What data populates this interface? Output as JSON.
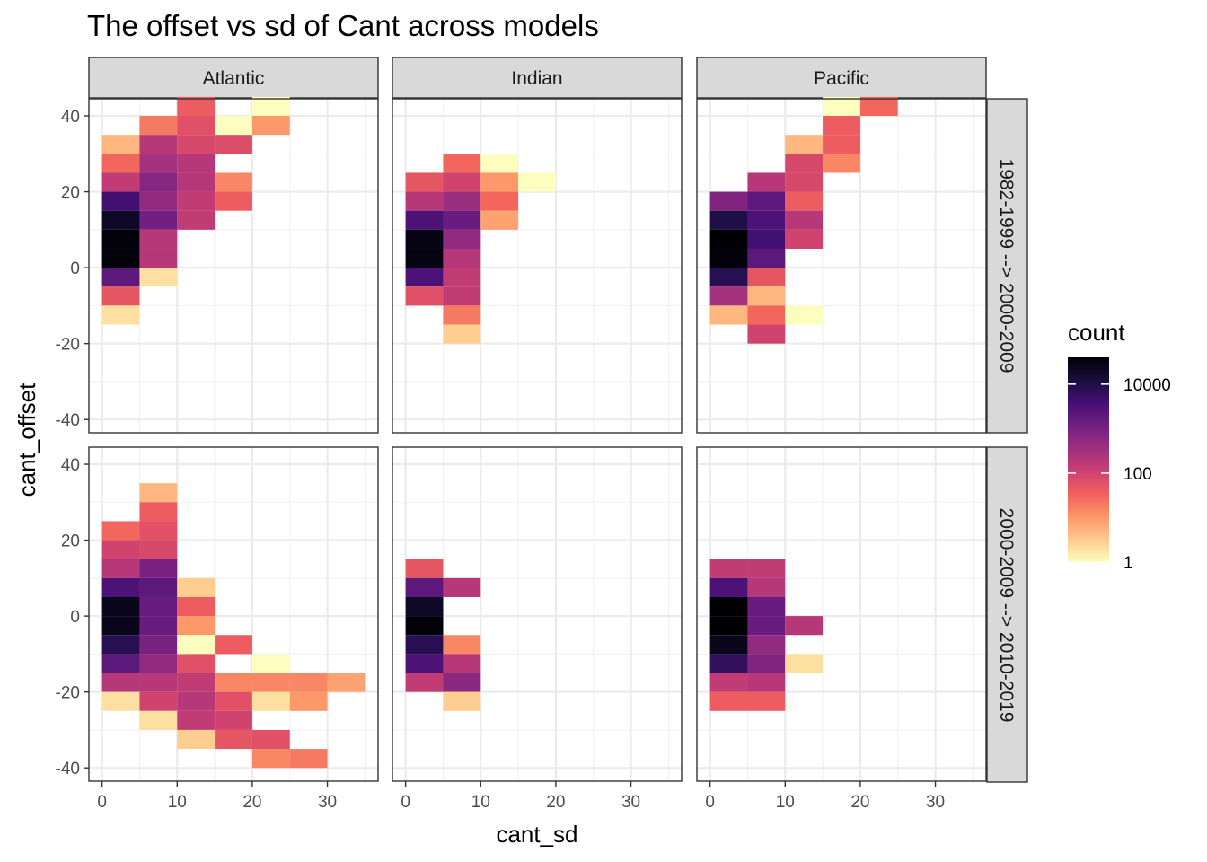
{
  "chart_data": {
    "type": "heatmap",
    "title": "The offset vs sd of Cant across models",
    "xlabel": "cant_sd",
    "ylabel": "cant_offset",
    "xlim": [
      -1.75,
      36.75
    ],
    "ylim": [
      -43.5,
      44.5
    ],
    "xticks": [
      0,
      10,
      20,
      30
    ],
    "yticks": [
      40,
      20,
      0,
      -20,
      -40
    ],
    "xtick_labels": [
      "0",
      "10",
      "20",
      "30"
    ],
    "ytick_labels": [
      "40",
      "20",
      "0",
      "-20",
      "-40"
    ],
    "bin_width_x": 5,
    "bin_height_y": 5,
    "columns": [
      "Atlantic",
      "Indian",
      "Pacific"
    ],
    "rows": [
      "1982-1999 --> 2000-2009",
      "2000-2009 --> 2010-2019"
    ],
    "legend": {
      "title": "count",
      "scale": "log10",
      "palette": "magma (reversed)",
      "breaks": [
        10000,
        100,
        1
      ],
      "break_labels": [
        "10000",
        "100",
        "1"
      ],
      "range": [
        1,
        40000
      ],
      "colors": [
        "#fcfdbf",
        "#feca8d",
        "#fd9668",
        "#f1605d",
        "#cd4071",
        "#9e2f7f",
        "#721f81",
        "#440f76",
        "#180f3d",
        "#000004"
      ]
    },
    "panels": [
      {
        "col": "Atlantic",
        "row": "1982-1999 --> 2000-2009",
        "cells": [
          {
            "x": 10,
            "y": 40,
            "count": 40
          },
          {
            "x": 20,
            "y": 40,
            "count": 1
          },
          {
            "x": 5,
            "y": 35,
            "count": 20
          },
          {
            "x": 10,
            "y": 35,
            "count": 60
          },
          {
            "x": 15,
            "y": 35,
            "count": 1
          },
          {
            "x": 20,
            "y": 35,
            "count": 10
          },
          {
            "x": 0,
            "y": 30,
            "count": 5
          },
          {
            "x": 5,
            "y": 30,
            "count": 200
          },
          {
            "x": 10,
            "y": 30,
            "count": 80
          },
          {
            "x": 15,
            "y": 30,
            "count": 70
          },
          {
            "x": 0,
            "y": 25,
            "count": 30
          },
          {
            "x": 5,
            "y": 25,
            "count": 300
          },
          {
            "x": 10,
            "y": 25,
            "count": 200
          },
          {
            "x": 0,
            "y": 20,
            "count": 150
          },
          {
            "x": 5,
            "y": 20,
            "count": 700
          },
          {
            "x": 10,
            "y": 20,
            "count": 200
          },
          {
            "x": 15,
            "y": 20,
            "count": 15
          },
          {
            "x": 0,
            "y": 15,
            "count": 4000
          },
          {
            "x": 5,
            "y": 15,
            "count": 500
          },
          {
            "x": 10,
            "y": 15,
            "count": 150
          },
          {
            "x": 15,
            "y": 15,
            "count": 40
          },
          {
            "x": 0,
            "y": 10,
            "count": 20000
          },
          {
            "x": 5,
            "y": 10,
            "count": 1200
          },
          {
            "x": 10,
            "y": 10,
            "count": 150
          },
          {
            "x": 0,
            "y": 5,
            "count": 35000
          },
          {
            "x": 5,
            "y": 5,
            "count": 200
          },
          {
            "x": 0,
            "y": 0,
            "count": 35000
          },
          {
            "x": 5,
            "y": 0,
            "count": 200
          },
          {
            "x": 0,
            "y": -5,
            "count": 2000
          },
          {
            "x": 5,
            "y": -5,
            "count": 2
          },
          {
            "x": 0,
            "y": -10,
            "count": 50
          },
          {
            "x": 0,
            "y": -15,
            "count": 2
          }
        ]
      },
      {
        "col": "Indian",
        "row": "1982-1999 --> 2000-2009",
        "cells": [
          {
            "x": 5,
            "y": 25,
            "count": 30
          },
          {
            "x": 10,
            "y": 25,
            "count": 1
          },
          {
            "x": 0,
            "y": 20,
            "count": 50
          },
          {
            "x": 5,
            "y": 20,
            "count": 100
          },
          {
            "x": 10,
            "y": 20,
            "count": 10
          },
          {
            "x": 15,
            "y": 20,
            "count": 1
          },
          {
            "x": 0,
            "y": 15,
            "count": 200
          },
          {
            "x": 5,
            "y": 15,
            "count": 400
          },
          {
            "x": 10,
            "y": 15,
            "count": 30
          },
          {
            "x": 0,
            "y": 10,
            "count": 3000
          },
          {
            "x": 5,
            "y": 10,
            "count": 1500
          },
          {
            "x": 10,
            "y": 10,
            "count": 8
          },
          {
            "x": 0,
            "y": 5,
            "count": 30000
          },
          {
            "x": 5,
            "y": 5,
            "count": 500
          },
          {
            "x": 0,
            "y": 0,
            "count": 30000
          },
          {
            "x": 5,
            "y": 0,
            "count": 200
          },
          {
            "x": 0,
            "y": -5,
            "count": 3000
          },
          {
            "x": 5,
            "y": -5,
            "count": 150
          },
          {
            "x": 0,
            "y": -10,
            "count": 60
          },
          {
            "x": 5,
            "y": -10,
            "count": 150
          },
          {
            "x": 5,
            "y": -15,
            "count": 20
          },
          {
            "x": 5,
            "y": -20,
            "count": 3
          }
        ]
      },
      {
        "col": "Pacific",
        "row": "1982-1999 --> 2000-2009",
        "cells": [
          {
            "x": 15,
            "y": 40,
            "count": 1
          },
          {
            "x": 20,
            "y": 40,
            "count": 30
          },
          {
            "x": 15,
            "y": 35,
            "count": 40
          },
          {
            "x": 10,
            "y": 30,
            "count": 5
          },
          {
            "x": 15,
            "y": 30,
            "count": 40
          },
          {
            "x": 10,
            "y": 25,
            "count": 80
          },
          {
            "x": 15,
            "y": 25,
            "count": 15
          },
          {
            "x": 5,
            "y": 20,
            "count": 200
          },
          {
            "x": 10,
            "y": 20,
            "count": 80
          },
          {
            "x": 0,
            "y": 15,
            "count": 800
          },
          {
            "x": 5,
            "y": 15,
            "count": 2000
          },
          {
            "x": 10,
            "y": 15,
            "count": 40
          },
          {
            "x": 0,
            "y": 10,
            "count": 10000
          },
          {
            "x": 5,
            "y": 10,
            "count": 3000
          },
          {
            "x": 10,
            "y": 10,
            "count": 200
          },
          {
            "x": 0,
            "y": 5,
            "count": 40000
          },
          {
            "x": 5,
            "y": 5,
            "count": 4000
          },
          {
            "x": 10,
            "y": 5,
            "count": 100
          },
          {
            "x": 0,
            "y": 0,
            "count": 35000
          },
          {
            "x": 5,
            "y": 0,
            "count": 2000
          },
          {
            "x": 0,
            "y": -5,
            "count": 8000
          },
          {
            "x": 5,
            "y": -5,
            "count": 50
          },
          {
            "x": 0,
            "y": -10,
            "count": 300
          },
          {
            "x": 5,
            "y": -10,
            "count": 5
          },
          {
            "x": 0,
            "y": -15,
            "count": 5
          },
          {
            "x": 5,
            "y": -15,
            "count": 30
          },
          {
            "x": 10,
            "y": -15,
            "count": 1
          },
          {
            "x": 5,
            "y": -20,
            "count": 100
          }
        ]
      },
      {
        "col": "Atlantic",
        "row": "2000-2009 --> 2010-2019",
        "cells": [
          {
            "x": 5,
            "y": 30,
            "count": 5
          },
          {
            "x": 5,
            "y": 25,
            "count": 40
          },
          {
            "x": 0,
            "y": 20,
            "count": 30
          },
          {
            "x": 5,
            "y": 20,
            "count": 60
          },
          {
            "x": 0,
            "y": 15,
            "count": 100
          },
          {
            "x": 5,
            "y": 15,
            "count": 80
          },
          {
            "x": 0,
            "y": 10,
            "count": 200
          },
          {
            "x": 5,
            "y": 10,
            "count": 1000
          },
          {
            "x": 0,
            "y": 5,
            "count": 3000
          },
          {
            "x": 5,
            "y": 5,
            "count": 2000
          },
          {
            "x": 10,
            "y": 5,
            "count": 3
          },
          {
            "x": 0,
            "y": 0,
            "count": 25000
          },
          {
            "x": 5,
            "y": 0,
            "count": 1500
          },
          {
            "x": 10,
            "y": 0,
            "count": 40
          },
          {
            "x": 0,
            "y": -5,
            "count": 25000
          },
          {
            "x": 5,
            "y": -5,
            "count": 1500
          },
          {
            "x": 10,
            "y": -5,
            "count": 10
          },
          {
            "x": 0,
            "y": -10,
            "count": 8000
          },
          {
            "x": 5,
            "y": -10,
            "count": 1000
          },
          {
            "x": 10,
            "y": -10,
            "count": 1
          },
          {
            "x": 15,
            "y": -10,
            "count": 40
          },
          {
            "x": 0,
            "y": -15,
            "count": 2000
          },
          {
            "x": 5,
            "y": -15,
            "count": 500
          },
          {
            "x": 10,
            "y": -15,
            "count": 60
          },
          {
            "x": 20,
            "y": -15,
            "count": 1
          },
          {
            "x": 0,
            "y": -20,
            "count": 200
          },
          {
            "x": 5,
            "y": -20,
            "count": 200
          },
          {
            "x": 10,
            "y": -20,
            "count": 150
          },
          {
            "x": 15,
            "y": -20,
            "count": 15
          },
          {
            "x": 20,
            "y": -20,
            "count": 15
          },
          {
            "x": 25,
            "y": -20,
            "count": 15
          },
          {
            "x": 30,
            "y": -20,
            "count": 8
          },
          {
            "x": 0,
            "y": -25,
            "count": 2
          },
          {
            "x": 5,
            "y": -25,
            "count": 100
          },
          {
            "x": 10,
            "y": -25,
            "count": 200
          },
          {
            "x": 15,
            "y": -25,
            "count": 60
          },
          {
            "x": 20,
            "y": -25,
            "count": 2
          },
          {
            "x": 25,
            "y": -25,
            "count": 10
          },
          {
            "x": 5,
            "y": -30,
            "count": 2
          },
          {
            "x": 10,
            "y": -30,
            "count": 150
          },
          {
            "x": 15,
            "y": -30,
            "count": 100
          },
          {
            "x": 10,
            "y": -35,
            "count": 3
          },
          {
            "x": 15,
            "y": -35,
            "count": 50
          },
          {
            "x": 20,
            "y": -35,
            "count": 60
          },
          {
            "x": 20,
            "y": -40,
            "count": 15
          },
          {
            "x": 25,
            "y": -40,
            "count": 20
          }
        ]
      },
      {
        "col": "Indian",
        "row": "2000-2009 --> 2010-2019",
        "cells": [
          {
            "x": 0,
            "y": 10,
            "count": 50
          },
          {
            "x": 0,
            "y": 5,
            "count": 2000
          },
          {
            "x": 5,
            "y": 5,
            "count": 200
          },
          {
            "x": 0,
            "y": 0,
            "count": 20000
          },
          {
            "x": 0,
            "y": -5,
            "count": 35000
          },
          {
            "x": 0,
            "y": -10,
            "count": 8000
          },
          {
            "x": 5,
            "y": -10,
            "count": 15
          },
          {
            "x": 0,
            "y": -15,
            "count": 3000
          },
          {
            "x": 5,
            "y": -15,
            "count": 200
          },
          {
            "x": 0,
            "y": -20,
            "count": 150
          },
          {
            "x": 5,
            "y": -20,
            "count": 600
          },
          {
            "x": 5,
            "y": -25,
            "count": 3
          }
        ]
      },
      {
        "col": "Pacific",
        "row": "2000-2009 --> 2010-2019",
        "cells": [
          {
            "x": 0,
            "y": 10,
            "count": 150
          },
          {
            "x": 5,
            "y": 10,
            "count": 150
          },
          {
            "x": 0,
            "y": 5,
            "count": 3000
          },
          {
            "x": 5,
            "y": 5,
            "count": 200
          },
          {
            "x": 0,
            "y": 0,
            "count": 40000
          },
          {
            "x": 5,
            "y": 0,
            "count": 1500
          },
          {
            "x": 0,
            "y": -5,
            "count": 40000
          },
          {
            "x": 5,
            "y": -5,
            "count": 1500
          },
          {
            "x": 10,
            "y": -5,
            "count": 200
          },
          {
            "x": 0,
            "y": -10,
            "count": 25000
          },
          {
            "x": 5,
            "y": -10,
            "count": 500
          },
          {
            "x": 0,
            "y": -15,
            "count": 6000
          },
          {
            "x": 5,
            "y": -15,
            "count": 800
          },
          {
            "x": 10,
            "y": -15,
            "count": 2
          },
          {
            "x": 0,
            "y": -20,
            "count": 150
          },
          {
            "x": 5,
            "y": -20,
            "count": 200
          },
          {
            "x": 0,
            "y": -25,
            "count": 40
          },
          {
            "x": 5,
            "y": -25,
            "count": 40
          }
        ]
      }
    ]
  }
}
